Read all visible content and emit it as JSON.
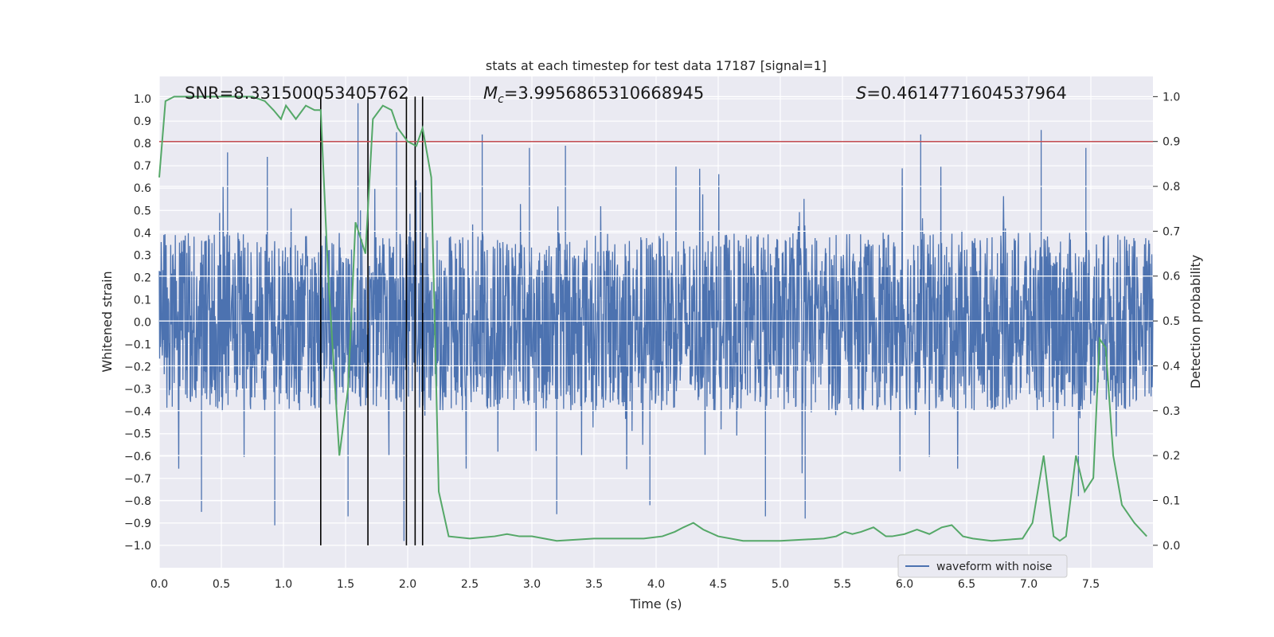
{
  "chart_data": {
    "type": "line",
    "title": "stats at each timestep for test data 17187 [signal=1]",
    "xlabel": "Time (s)",
    "ylabel": "Whitened strain",
    "ylabel_right": "Detection probability",
    "xlim": [
      0,
      8
    ],
    "ylim": [
      -1.1,
      1.1
    ],
    "ylim_right": [
      -0.05,
      1.045
    ],
    "x_ticks": [
      "0.0",
      "0.5",
      "1.0",
      "1.5",
      "2.0",
      "2.5",
      "3.0",
      "3.5",
      "4.0",
      "4.5",
      "5.0",
      "5.5",
      "6.0",
      "6.5",
      "7.0",
      "7.5"
    ],
    "y_ticks": [
      "1.0",
      "0.9",
      "0.8",
      "0.7",
      "0.6",
      "0.5",
      "0.4",
      "0.3",
      "0.2",
      "0.1",
      "0.0",
      "−0.1",
      "−0.2",
      "−0.3",
      "−0.4",
      "−0.5",
      "−0.6",
      "−0.7",
      "−0.8",
      "−0.9",
      "−1.0"
    ],
    "y_right_ticks": [
      "1.0",
      "0.9",
      "0.8",
      "0.7",
      "0.6",
      "0.5",
      "0.4",
      "0.3",
      "0.2",
      "0.1",
      "0.0"
    ],
    "grid": true,
    "legend_position": "lower-right",
    "annotations": {
      "snr": "SNR=8.331500053405762",
      "mc_symbol": "M",
      "mc_sub": "c",
      "mc_value": "=3.9956865310668945",
      "s_symbol": "S",
      "s_value": "=0.4614771604537964"
    },
    "threshold": {
      "value": 0.9,
      "axis": "right"
    },
    "markers_x": [
      1.3,
      1.68,
      1.99,
      2.06,
      2.12
    ],
    "series": [
      {
        "name": "waveform with noise",
        "kind": "noise-waveform",
        "axis": "left",
        "color": "#4c72b0",
        "typical_amplitude": 0.4,
        "peaks": [
          {
            "t": 0.55,
            "v": 0.76
          },
          {
            "t": 0.87,
            "v": 0.74
          },
          {
            "t": 1.6,
            "v": 0.98
          },
          {
            "t": 1.62,
            "v": 0.5
          },
          {
            "t": 1.91,
            "v": 0.85
          },
          {
            "t": 2.6,
            "v": 0.84
          },
          {
            "t": 2.98,
            "v": 0.78
          },
          {
            "t": 3.27,
            "v": 0.79
          },
          {
            "t": 6.13,
            "v": 0.84
          },
          {
            "t": 7.1,
            "v": 0.86
          },
          {
            "t": 7.46,
            "v": 0.78
          },
          {
            "t": 0.93,
            "v": -0.91
          },
          {
            "t": 0.34,
            "v": -0.85
          },
          {
            "t": 1.52,
            "v": -0.87
          },
          {
            "t": 1.97,
            "v": -0.98
          },
          {
            "t": 3.2,
            "v": -0.86
          },
          {
            "t": 3.95,
            "v": -0.82
          },
          {
            "t": 4.88,
            "v": -0.87
          },
          {
            "t": 5.2,
            "v": -0.88
          },
          {
            "t": 7.4,
            "v": -0.78
          }
        ]
      },
      {
        "name": "",
        "kind": "detection-probability",
        "axis": "right",
        "color": "#55a868",
        "x": [
          0,
          0.05,
          0.12,
          0.3,
          0.6,
          0.75,
          0.85,
          0.92,
          0.98,
          1.02,
          1.1,
          1.18,
          1.25,
          1.3,
          1.36,
          1.45,
          1.52,
          1.58,
          1.66,
          1.72,
          1.8,
          1.87,
          1.92,
          2.0,
          2.07,
          2.12,
          2.19,
          2.25,
          2.33,
          2.5,
          2.7,
          2.8,
          2.9,
          3.0,
          3.1,
          3.2,
          3.5,
          3.9,
          4.05,
          4.15,
          4.22,
          4.3,
          4.38,
          4.5,
          4.7,
          5.0,
          5.35,
          5.45,
          5.52,
          5.58,
          5.65,
          5.75,
          5.85,
          5.9,
          6.0,
          6.1,
          6.2,
          6.3,
          6.38,
          6.47,
          6.55,
          6.7,
          6.95,
          7.03,
          7.12,
          7.2,
          7.25,
          7.3,
          7.38,
          7.45,
          7.52,
          7.57,
          7.62,
          7.68,
          7.75,
          7.85,
          7.95
        ],
        "y": [
          0.82,
          0.99,
          1.0,
          1.0,
          1.0,
          1.0,
          0.99,
          0.97,
          0.95,
          0.98,
          0.95,
          0.98,
          0.97,
          0.97,
          0.6,
          0.2,
          0.35,
          0.72,
          0.65,
          0.95,
          0.98,
          0.97,
          0.93,
          0.9,
          0.89,
          0.93,
          0.82,
          0.12,
          0.02,
          0.015,
          0.02,
          0.025,
          0.02,
          0.02,
          0.015,
          0.01,
          0.015,
          0.015,
          0.02,
          0.03,
          0.04,
          0.05,
          0.035,
          0.02,
          0.01,
          0.01,
          0.015,
          0.02,
          0.03,
          0.025,
          0.03,
          0.04,
          0.02,
          0.02,
          0.025,
          0.035,
          0.025,
          0.04,
          0.045,
          0.02,
          0.015,
          0.01,
          0.015,
          0.05,
          0.2,
          0.02,
          0.01,
          0.02,
          0.2,
          0.12,
          0.15,
          0.46,
          0.44,
          0.2,
          0.09,
          0.05,
          0.02
        ]
      }
    ]
  }
}
